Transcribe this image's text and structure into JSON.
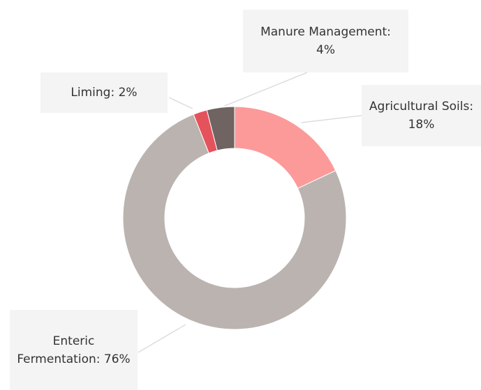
{
  "chart_data": {
    "type": "donut",
    "values": [
      18,
      76,
      2,
      4
    ],
    "value_labels": [
      "Agricultural Soils: 18%",
      "Enteric Fermentation: 76%",
      "Liming: 2%",
      "Manure Management: 4%"
    ],
    "colors": [
      "#fc9a9a",
      "#bbb3b0",
      "#e4535c",
      "#6f6462"
    ]
  }
}
